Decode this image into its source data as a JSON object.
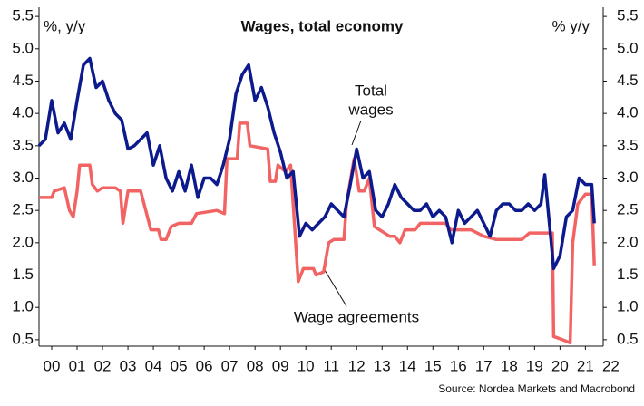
{
  "chart_data": {
    "type": "line",
    "title": "Wages, total economy",
    "ylabel": "%, y/y",
    "y2label": "% y/y",
    "source": "Source: Nordea Markets and Macrobond",
    "annotations": [
      "Total",
      "wages",
      "Wage agreements"
    ],
    "xlim": [
      0,
      22.2
    ],
    "xticks": [
      {
        "value": 0.5,
        "label": "00"
      },
      {
        "value": 1.5,
        "label": "01"
      },
      {
        "value": 2.5,
        "label": "02"
      },
      {
        "value": 3.5,
        "label": "03"
      },
      {
        "value": 4.5,
        "label": "04"
      },
      {
        "value": 5.5,
        "label": "05"
      },
      {
        "value": 6.5,
        "label": "06"
      },
      {
        "value": 7.5,
        "label": "07"
      },
      {
        "value": 8.5,
        "label": "08"
      },
      {
        "value": 9.5,
        "label": "09"
      },
      {
        "value": 10.5,
        "label": "10"
      },
      {
        "value": 11.5,
        "label": "11"
      },
      {
        "value": 12.5,
        "label": "12"
      },
      {
        "value": 13.5,
        "label": "13"
      },
      {
        "value": 14.5,
        "label": "14"
      },
      {
        "value": 15.5,
        "label": "15"
      },
      {
        "value": 16.5,
        "label": "16"
      },
      {
        "value": 17.5,
        "label": "17"
      },
      {
        "value": 18.5,
        "label": "18"
      },
      {
        "value": 19.5,
        "label": "19"
      },
      {
        "value": 20.5,
        "label": "20"
      },
      {
        "value": 21.5,
        "label": "21"
      },
      {
        "value": 22.5,
        "label": "22"
      }
    ],
    "ylim": [
      0.4,
      5.6
    ],
    "yticks": [
      0.5,
      {
        "value": 1,
        "label": "1.0"
      },
      1.5,
      {
        "value": 2,
        "label": "2.0"
      },
      2.5,
      {
        "value": 3,
        "label": "3.0"
      },
      3.5,
      {
        "value": 4,
        "label": "4.0"
      },
      4.5,
      {
        "value": 5,
        "label": "5.0"
      },
      5.5
    ],
    "y2lim": [
      0.4,
      5.6
    ],
    "y2ticks": [
      0.5,
      {
        "value": 1,
        "label": "1.0"
      },
      1.5,
      {
        "value": 2,
        "label": "2.0"
      },
      2.5,
      {
        "value": 3,
        "label": "3.0"
      },
      3.5,
      {
        "value": 4,
        "label": "4.0"
      },
      4.5,
      {
        "value": 5,
        "label": "5.0"
      },
      5.5
    ],
    "grid": false,
    "series": [
      {
        "name": "Total wages",
        "color": "#0c1a8e",
        "x": [
          0,
          0.25,
          0.5,
          0.75,
          1.0,
          1.25,
          1.5,
          1.75,
          2.0,
          2.25,
          2.5,
          2.75,
          3.0,
          3.25,
          3.5,
          3.75,
          4.0,
          4.25,
          4.5,
          4.75,
          5.0,
          5.25,
          5.5,
          5.75,
          6.0,
          6.25,
          6.5,
          6.75,
          7.0,
          7.25,
          7.5,
          7.75,
          8.0,
          8.25,
          8.5,
          8.75,
          9.0,
          9.25,
          9.5,
          9.75,
          10.0,
          10.25,
          10.5,
          10.75,
          11.0,
          11.25,
          11.5,
          11.75,
          12.0,
          12.25,
          12.5,
          12.75,
          13.0,
          13.25,
          13.5,
          13.75,
          14.0,
          14.25,
          14.5,
          14.75,
          15.0,
          15.25,
          15.5,
          15.75,
          16.0,
          16.25,
          16.5,
          16.75,
          17.0,
          17.25,
          17.5,
          17.75,
          18.0,
          18.25,
          18.5,
          18.75,
          19.0,
          19.25,
          19.5,
          19.75,
          19.9,
          20.25,
          20.5,
          20.75,
          21.0,
          21.25,
          21.5,
          21.75,
          21.85
        ],
        "values": [
          3.5,
          3.6,
          4.2,
          3.7,
          3.85,
          3.6,
          4.2,
          4.75,
          4.85,
          4.4,
          4.5,
          4.2,
          4.0,
          3.9,
          3.45,
          3.5,
          3.6,
          3.7,
          3.2,
          3.5,
          3.0,
          2.8,
          3.1,
          2.8,
          3.2,
          2.7,
          3.0,
          3.0,
          2.9,
          3.2,
          3.6,
          4.3,
          4.6,
          4.75,
          4.2,
          4.4,
          4.1,
          3.7,
          3.4,
          3.0,
          3.1,
          2.1,
          2.3,
          2.2,
          2.3,
          2.4,
          2.6,
          2.5,
          2.4,
          2.9,
          3.45,
          3.0,
          3.1,
          2.5,
          2.4,
          2.6,
          2.9,
          2.7,
          2.6,
          2.5,
          2.5,
          2.6,
          2.4,
          2.5,
          2.4,
          2.0,
          2.5,
          2.3,
          2.4,
          2.5,
          2.3,
          2.1,
          2.5,
          2.6,
          2.6,
          2.5,
          2.5,
          2.6,
          2.5,
          2.6,
          3.05,
          1.6,
          1.8,
          2.4,
          2.5,
          3.0,
          2.9,
          2.9,
          2.3
        ]
      },
      {
        "name": "Wage agreements",
        "color": "#f26464",
        "x": [
          0,
          0.5,
          0.6,
          1.0,
          1.2,
          1.35,
          1.5,
          1.6,
          2.0,
          2.1,
          2.3,
          2.5,
          3.0,
          3.2,
          3.3,
          3.5,
          4.0,
          4.2,
          4.4,
          4.7,
          4.8,
          5.0,
          5.2,
          5.5,
          6.0,
          6.2,
          7.0,
          7.3,
          7.4,
          7.8,
          7.9,
          8.2,
          8.3,
          9.0,
          9.1,
          9.3,
          9.4,
          9.7,
          9.9,
          10.2,
          10.4,
          10.8,
          10.9,
          11.2,
          11.4,
          11.6,
          12.0,
          12.1,
          12.4,
          12.6,
          12.8,
          13.0,
          13.2,
          13.8,
          14.0,
          14.2,
          14.4,
          14.8,
          15.0,
          16.0,
          16.2,
          17.0,
          17.5,
          18.0,
          19.0,
          19.3,
          20.2,
          20.25,
          20.6,
          20.9,
          21.0,
          21.2,
          21.5,
          21.75,
          21.85
        ],
        "values": [
          2.7,
          2.7,
          2.8,
          2.85,
          2.5,
          2.4,
          2.8,
          3.2,
          3.2,
          2.9,
          2.8,
          2.85,
          2.85,
          2.8,
          2.3,
          2.8,
          2.8,
          2.5,
          2.2,
          2.2,
          2.05,
          2.05,
          2.25,
          2.3,
          2.3,
          2.45,
          2.5,
          2.45,
          3.3,
          3.3,
          3.85,
          3.85,
          3.5,
          3.45,
          2.95,
          2.95,
          3.2,
          3.1,
          3.2,
          1.4,
          1.6,
          1.6,
          1.5,
          1.55,
          2.0,
          2.05,
          2.05,
          2.6,
          3.3,
          2.8,
          2.8,
          3.0,
          2.25,
          2.1,
          2.1,
          2.0,
          2.2,
          2.2,
          2.3,
          2.3,
          2.2,
          2.2,
          2.1,
          2.05,
          2.05,
          2.15,
          2.15,
          0.55,
          0.5,
          0.45,
          2.0,
          2.6,
          2.75,
          2.75,
          1.65
        ]
      }
    ]
  }
}
